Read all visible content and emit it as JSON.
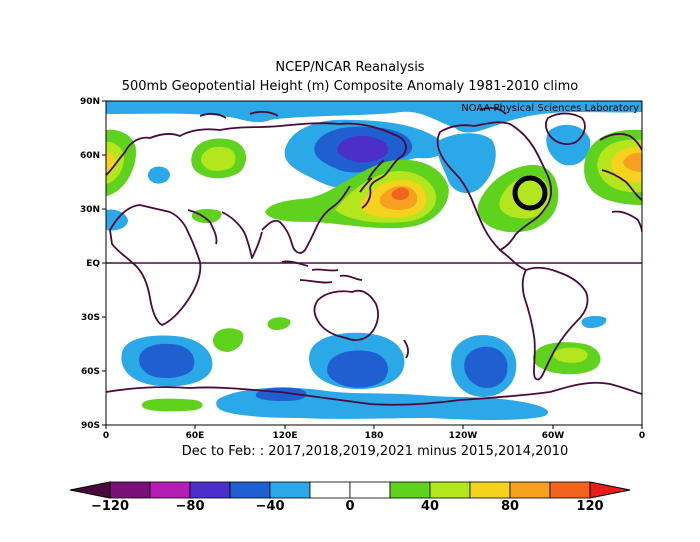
{
  "title_line1": "NCEP/NCAR Reanalysis",
  "title_line2": "500mb Geopotential Height (m) Composite Anomaly 1981-2010 climo",
  "credit": "NOAA Physical Sciences Laboratory",
  "subtitle": "Dec to Feb: : 2017,2018,2019,2021 minus 2015,2014,2010",
  "lat_ticks": [
    "90N",
    "60N",
    "30N",
    "EQ",
    "30S",
    "60S",
    "90S"
  ],
  "lon_ticks": [
    "0",
    "60E",
    "120E",
    "180",
    "120W",
    "60W",
    "0"
  ],
  "colorbar": {
    "labels": [
      "-120",
      "-80",
      "-40",
      "0",
      "40",
      "80",
      "120"
    ],
    "colors": [
      "#7a0f7a",
      "#b41eb4",
      "#4b2fc8",
      "#1f5fd0",
      "#2aa8e8",
      "#ffffff",
      "#ffffff",
      "#5fd21e",
      "#b4e61e",
      "#f5d21e",
      "#f5a01e",
      "#f0641e"
    ],
    "low_color": "#4a0a3c",
    "high_color": "#e81e1e"
  }
}
